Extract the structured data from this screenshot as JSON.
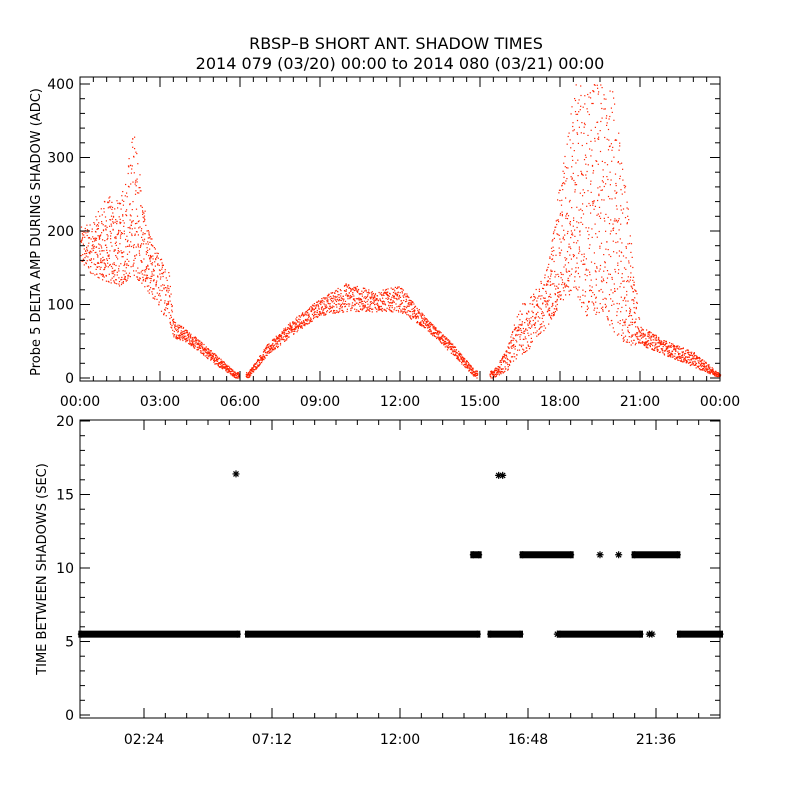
{
  "title": "RBSP–B SHORT ANT. SHADOW TIMES",
  "subtitle": "2014 079 (03/20) 00:00 to 2014 080 (03/21) 00:00",
  "colors": {
    "top_points": "#ff2200",
    "bottom_points": "#000000",
    "axes": "#000000"
  },
  "chart_data": [
    {
      "type": "scatter",
      "ylabel": "Probe 5 DELTA AMP DURING SHADOW (ADC)",
      "xlabel": "",
      "xlim_hours": [
        0,
        24
      ],
      "ylim": [
        0,
        400
      ],
      "x_tick_labels": [
        "00:00",
        "03:00",
        "06:00",
        "09:00",
        "12:00",
        "15:00",
        "18:00",
        "21:00",
        "00:00"
      ],
      "y_tick_labels": [
        "0",
        "100",
        "200",
        "300",
        "400"
      ],
      "grid": false,
      "series": [
        {
          "color": "#ff2200",
          "envelope": [
            {
              "x": 0.0,
              "low": 150,
              "high": 205
            },
            {
              "x": 0.5,
              "low": 140,
              "high": 215
            },
            {
              "x": 1.0,
              "low": 130,
              "high": 250
            },
            {
              "x": 1.5,
              "low": 125,
              "high": 240
            },
            {
              "x": 2.0,
              "low": 140,
              "high": 345
            },
            {
              "x": 2.5,
              "low": 120,
              "high": 205
            },
            {
              "x": 3.0,
              "low": 90,
              "high": 165
            },
            {
              "x": 3.3,
              "low": 80,
              "high": 155
            },
            {
              "x": 3.5,
              "low": 55,
              "high": 80
            },
            {
              "x": 4.0,
              "low": 48,
              "high": 65
            },
            {
              "x": 5.0,
              "low": 20,
              "high": 35
            },
            {
              "x": 5.8,
              "low": 0,
              "high": 8
            },
            {
              "x": 6.3,
              "low": 0,
              "high": 8
            },
            {
              "x": 7.0,
              "low": 30,
              "high": 45
            },
            {
              "x": 8.0,
              "low": 60,
              "high": 80
            },
            {
              "x": 9.0,
              "low": 85,
              "high": 108
            },
            {
              "x": 10.0,
              "low": 90,
              "high": 130
            },
            {
              "x": 11.0,
              "low": 90,
              "high": 118
            },
            {
              "x": 12.0,
              "low": 90,
              "high": 125
            },
            {
              "x": 13.0,
              "low": 65,
              "high": 80
            },
            {
              "x": 14.0,
              "low": 30,
              "high": 45
            },
            {
              "x": 14.8,
              "low": 0,
              "high": 10
            },
            {
              "x": 15.5,
              "low": 0,
              "high": 10
            },
            {
              "x": 16.0,
              "low": 10,
              "high": 40
            },
            {
              "x": 16.5,
              "low": 30,
              "high": 100
            },
            {
              "x": 17.0,
              "low": 45,
              "high": 115
            },
            {
              "x": 17.5,
              "low": 70,
              "high": 150
            },
            {
              "x": 18.0,
              "low": 100,
              "high": 270
            },
            {
              "x": 18.5,
              "low": 120,
              "high": 400
            },
            {
              "x": 19.0,
              "low": 80,
              "high": 400
            },
            {
              "x": 19.5,
              "low": 90,
              "high": 400
            },
            {
              "x": 20.0,
              "low": 60,
              "high": 390
            },
            {
              "x": 20.5,
              "low": 45,
              "high": 250
            },
            {
              "x": 21.0,
              "low": 45,
              "high": 70
            },
            {
              "x": 22.0,
              "low": 30,
              "high": 50
            },
            {
              "x": 23.0,
              "low": 15,
              "high": 35
            },
            {
              "x": 24.0,
              "low": 0,
              "high": 5
            }
          ]
        }
      ]
    },
    {
      "type": "scatter",
      "ylabel": "TIME BETWEEN SHADOWS (SEC)",
      "xlabel": "",
      "xlim_hours": [
        0,
        24
      ],
      "ylim": [
        0,
        20
      ],
      "x_tick_labels": [
        "02:24",
        "07:12",
        "12:00",
        "16:48",
        "21:36"
      ],
      "y_tick_labels": [
        "0",
        "5",
        "10",
        "15",
        "20"
      ],
      "grid": false,
      "marker": "*",
      "series": [
        {
          "color": "#000000",
          "segments": [
            {
              "x_start": 0.05,
              "x_end": 5.9,
              "y": 5.5
            },
            {
              "x_start": 6.3,
              "x_end": 14.9,
              "y": 5.5
            },
            {
              "x_start": 15.4,
              "x_end": 16.5,
              "y": 5.5
            },
            {
              "x_start": 18.0,
              "x_end": 21.0,
              "y": 5.5
            },
            {
              "x_start": 22.5,
              "x_end": 24.0,
              "y": 5.5
            },
            {
              "x_start": 14.75,
              "x_end": 14.95,
              "y": 10.9
            },
            {
              "x_start": 16.6,
              "x_end": 18.4,
              "y": 10.9
            },
            {
              "x_start": 20.8,
              "x_end": 22.4,
              "y": 10.9
            }
          ],
          "points": [
            {
              "x": 5.85,
              "y": 16.4
            },
            {
              "x": 15.7,
              "y": 16.3
            },
            {
              "x": 15.85,
              "y": 16.3
            },
            {
              "x": 19.5,
              "y": 10.9
            },
            {
              "x": 20.2,
              "y": 10.9
            },
            {
              "x": 17.9,
              "y": 5.5
            },
            {
              "x": 21.35,
              "y": 5.5
            },
            {
              "x": 21.45,
              "y": 5.5
            }
          ]
        }
      ]
    }
  ]
}
